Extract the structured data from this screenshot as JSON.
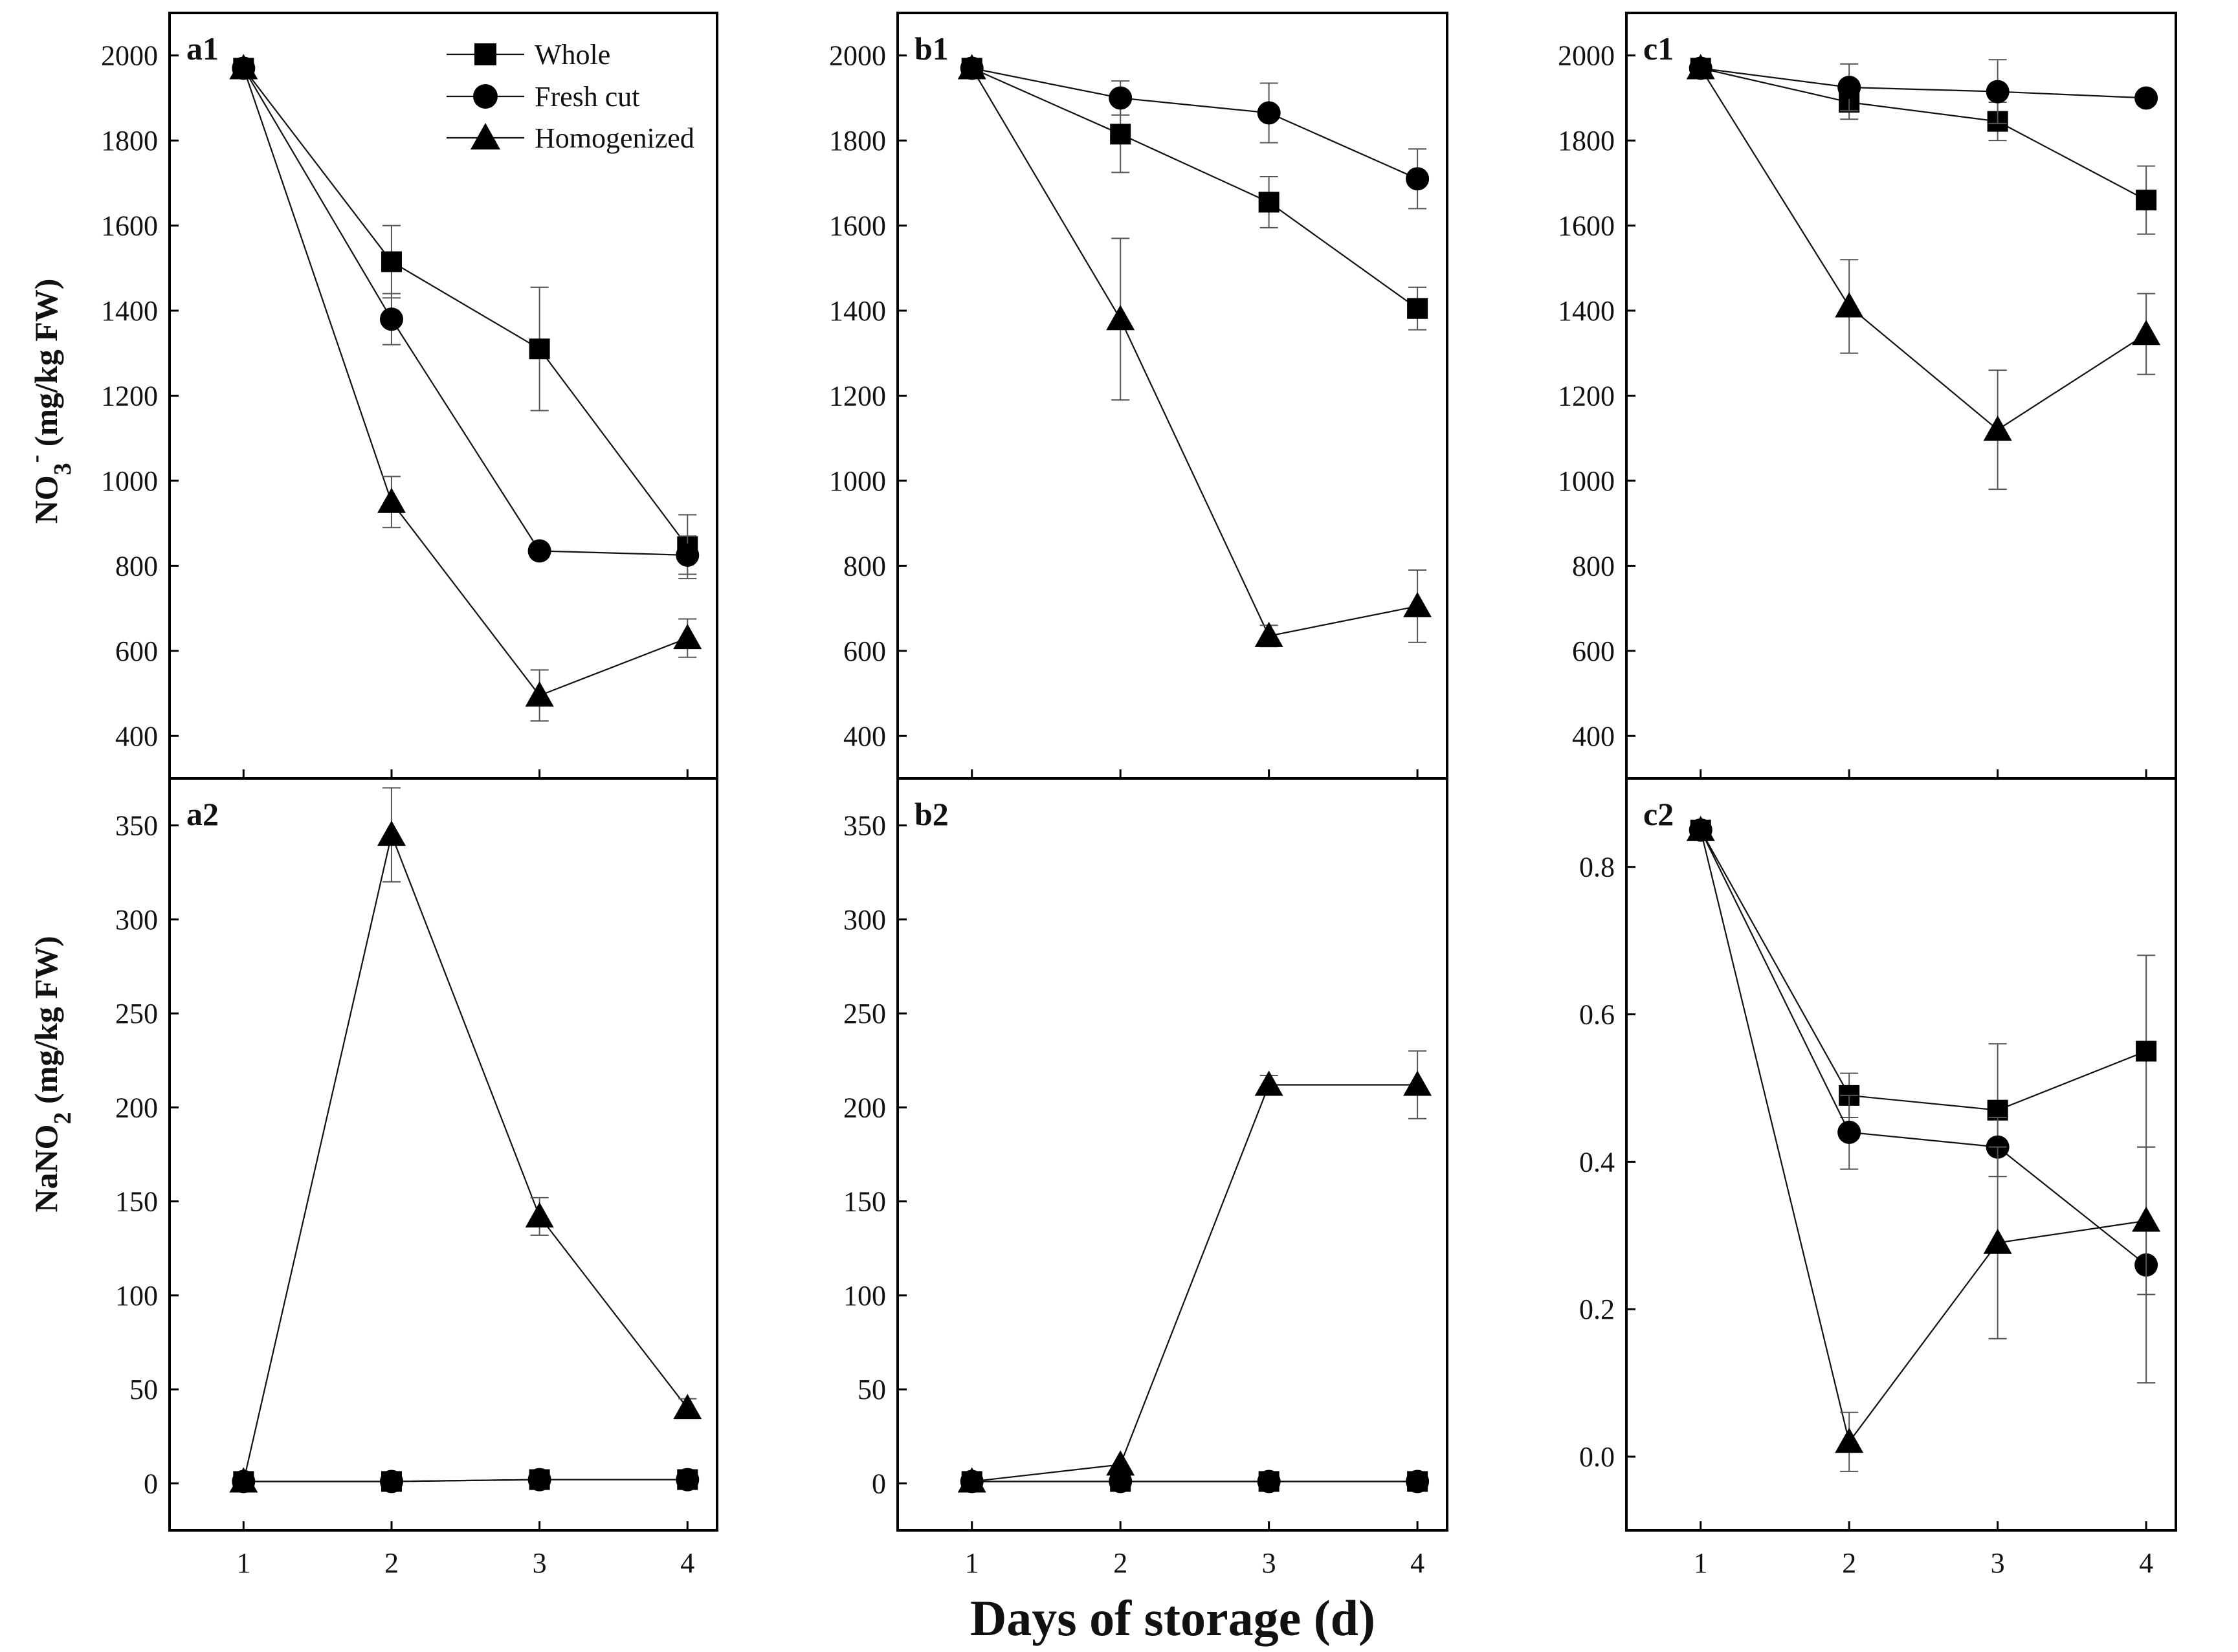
{
  "figure": {
    "x_axis_title": "Days of storage (d)",
    "y_titles": {
      "top": {
        "main": "NO",
        "sub": "3",
        "sup": "-",
        "rest": " (mg/kg FW)"
      },
      "bottom": {
        "main": "NaNO",
        "sub": "2",
        "rest": " (mg/kg FW)"
      }
    },
    "legend": [
      {
        "label": "Whole",
        "marker": "square"
      },
      {
        "label": "Fresh cut",
        "marker": "circle"
      },
      {
        "label": "Homogenized",
        "marker": "triangle"
      }
    ],
    "colors": {
      "line": "#111111",
      "marker": "#000000",
      "error_bar": "#555555"
    }
  },
  "chart_data": [
    {
      "id": "a1",
      "label": "a1",
      "type": "line",
      "x": [
        1,
        2,
        3,
        4
      ],
      "xticks": [
        1,
        2,
        3,
        4
      ],
      "xlim": [
        0.5,
        4.2
      ],
      "ylim": [
        300,
        2100
      ],
      "yticks": [
        400,
        600,
        800,
        1000,
        1200,
        1400,
        1600,
        1800,
        2000
      ],
      "series": [
        {
          "name": "Whole",
          "marker": "square",
          "values": [
            1970,
            1515,
            1310,
            845
          ],
          "errors": [
            0,
            85,
            145,
            75
          ]
        },
        {
          "name": "Fresh cut",
          "marker": "circle",
          "values": [
            1970,
            1380,
            835,
            825
          ],
          "errors": [
            0,
            60,
            0,
            45
          ]
        },
        {
          "name": "Homogenized",
          "marker": "triangle",
          "values": [
            1970,
            950,
            495,
            630
          ],
          "errors": [
            0,
            60,
            60,
            45
          ]
        }
      ]
    },
    {
      "id": "b1",
      "label": "b1",
      "type": "line",
      "x": [
        1,
        2,
        3,
        4
      ],
      "xticks": [
        1,
        2,
        3,
        4
      ],
      "xlim": [
        0.5,
        4.2
      ],
      "ylim": [
        300,
        2100
      ],
      "yticks": [
        400,
        600,
        800,
        1000,
        1200,
        1400,
        1600,
        1800,
        2000
      ],
      "series": [
        {
          "name": "Whole",
          "marker": "square",
          "values": [
            1970,
            1815,
            1655,
            1405
          ],
          "errors": [
            0,
            90,
            60,
            50
          ]
        },
        {
          "name": "Fresh cut",
          "marker": "circle",
          "values": [
            1970,
            1900,
            1865,
            1710
          ],
          "errors": [
            0,
            40,
            70,
            70
          ]
        },
        {
          "name": "Homogenized",
          "marker": "triangle",
          "values": [
            1970,
            1380,
            635,
            705
          ],
          "errors": [
            0,
            190,
            25,
            85
          ]
        }
      ]
    },
    {
      "id": "c1",
      "label": "c1",
      "type": "line",
      "x": [
        1,
        2,
        3,
        4
      ],
      "xticks": [
        1,
        2,
        3,
        4
      ],
      "xlim": [
        0.5,
        4.2
      ],
      "ylim": [
        300,
        2100
      ],
      "yticks": [
        400,
        600,
        800,
        1000,
        1200,
        1400,
        1600,
        1800,
        2000
      ],
      "series": [
        {
          "name": "Whole",
          "marker": "square",
          "values": [
            1970,
            1890,
            1845,
            1660
          ],
          "errors": [
            0,
            40,
            45,
            80
          ]
        },
        {
          "name": "Fresh cut",
          "marker": "circle",
          "values": [
            1970,
            1925,
            1915,
            1900
          ],
          "errors": [
            0,
            55,
            75,
            0
          ]
        },
        {
          "name": "Homogenized",
          "marker": "triangle",
          "values": [
            1970,
            1410,
            1120,
            1345
          ],
          "errors": [
            0,
            110,
            140,
            95
          ]
        }
      ]
    },
    {
      "id": "a2",
      "label": "a2",
      "type": "line",
      "x": [
        1,
        2,
        3,
        4
      ],
      "xticks": [
        1,
        2,
        3,
        4
      ],
      "xlim": [
        0.5,
        4.2
      ],
      "ylim": [
        -25,
        375
      ],
      "yticks": [
        0,
        50,
        100,
        150,
        200,
        250,
        300,
        350
      ],
      "series": [
        {
          "name": "Whole",
          "marker": "square",
          "values": [
            1,
            1,
            2,
            2
          ],
          "errors": [
            0,
            0,
            0,
            0
          ]
        },
        {
          "name": "Fresh cut",
          "marker": "circle",
          "values": [
            1,
            1,
            2,
            2
          ],
          "errors": [
            0,
            0,
            0,
            0
          ]
        },
        {
          "name": "Homogenized",
          "marker": "triangle",
          "values": [
            1,
            345,
            142,
            40
          ],
          "errors": [
            0,
            25,
            10,
            5
          ]
        }
      ]
    },
    {
      "id": "b2",
      "label": "b2",
      "type": "line",
      "x": [
        1,
        2,
        3,
        4
      ],
      "xticks": [
        1,
        2,
        3,
        4
      ],
      "xlim": [
        0.5,
        4.2
      ],
      "ylim": [
        -25,
        375
      ],
      "yticks": [
        0,
        50,
        100,
        150,
        200,
        250,
        300,
        350
      ],
      "series": [
        {
          "name": "Whole",
          "marker": "square",
          "values": [
            1,
            1,
            1,
            1
          ],
          "errors": [
            0,
            0,
            0,
            0
          ]
        },
        {
          "name": "Fresh cut",
          "marker": "circle",
          "values": [
            1,
            1,
            1,
            1
          ],
          "errors": [
            0,
            0,
            0,
            0
          ]
        },
        {
          "name": "Homogenized",
          "marker": "triangle",
          "values": [
            1,
            10,
            212,
            212
          ],
          "errors": [
            0,
            0,
            5,
            18
          ]
        }
      ]
    },
    {
      "id": "c2",
      "label": "c2",
      "type": "line",
      "x": [
        1,
        2,
        3,
        4
      ],
      "xticks": [
        1,
        2,
        3,
        4
      ],
      "xlim": [
        0.5,
        4.2
      ],
      "ylim": [
        -0.1,
        0.92
      ],
      "yticks": [
        0.0,
        0.2,
        0.4,
        0.6,
        0.8
      ],
      "ytick_decimals": 1,
      "series": [
        {
          "name": "Whole",
          "marker": "square",
          "values": [
            0.85,
            0.49,
            0.47,
            0.55
          ],
          "errors": [
            0,
            0.03,
            0.09,
            0.13
          ]
        },
        {
          "name": "Fresh cut",
          "marker": "circle",
          "values": [
            0.85,
            0.44,
            0.42,
            0.26
          ],
          "errors": [
            0,
            0.05,
            0.04,
            0.16
          ]
        },
        {
          "name": "Homogenized",
          "marker": "triangle",
          "values": [
            0.85,
            0.02,
            0.29,
            0.32
          ],
          "errors": [
            0,
            0.04,
            0.13,
            0.1
          ]
        }
      ]
    }
  ]
}
